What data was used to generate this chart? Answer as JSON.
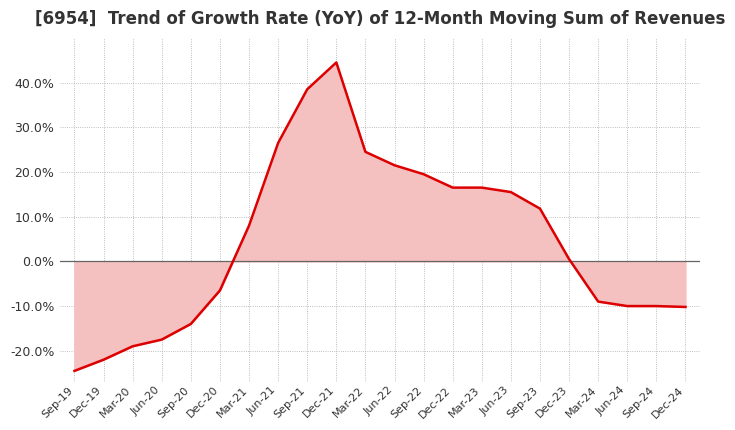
{
  "title": "[6954]  Trend of Growth Rate (YoY) of 12-Month Moving Sum of Revenues",
  "title_fontsize": 12,
  "title_color": "#333333",
  "line_color": "#dd0000",
  "fill_color": "#f5c0c0",
  "background_color": "#ffffff",
  "grid_color": "#aaaaaa",
  "ylim": [
    -0.27,
    0.5
  ],
  "yticks": [
    -0.2,
    -0.1,
    0.0,
    0.1,
    0.2,
    0.3,
    0.4
  ],
  "x_labels": [
    "Sep-19",
    "Dec-19",
    "Mar-20",
    "Jun-20",
    "Sep-20",
    "Dec-20",
    "Mar-21",
    "Jun-21",
    "Sep-21",
    "Dec-21",
    "Mar-22",
    "Jun-22",
    "Sep-22",
    "Dec-22",
    "Mar-23",
    "Jun-23",
    "Sep-23",
    "Dec-23",
    "Mar-24",
    "Jun-24",
    "Sep-24",
    "Dec-24"
  ],
  "data_y": [
    -0.245,
    -0.22,
    -0.19,
    -0.175,
    -0.14,
    -0.065,
    0.08,
    0.265,
    0.385,
    0.445,
    0.245,
    0.215,
    0.195,
    0.165,
    0.165,
    0.155,
    0.118,
    0.005,
    -0.09,
    -0.1,
    -0.1,
    -0.102
  ]
}
